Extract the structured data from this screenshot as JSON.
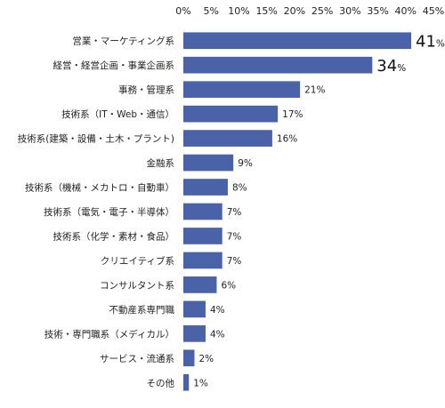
{
  "chart_data": {
    "type": "bar",
    "orientation": "horizontal",
    "title": "",
    "xlabel": "",
    "ylabel": "",
    "xlim": [
      0,
      45
    ],
    "ticks": [
      "0%",
      "5%",
      "10%",
      "15%",
      "20%",
      "25%",
      "30%",
      "35%",
      "40%",
      "45%"
    ],
    "tick_values": [
      0,
      5,
      10,
      15,
      20,
      25,
      30,
      35,
      40,
      45
    ],
    "grid": false,
    "legend": "none",
    "bar_color": "#4a62a8",
    "categories": [
      "営業・マーケティング系",
      "経営・経営企画・事業企画系",
      "事務・管理系",
      "技術系（IT・Web・通信）",
      "技術系(建築・設備・土木・プラント)",
      "金融系",
      "技術系（機械・メカトロ・自動車）",
      "技術系（電気・電子・半導体）",
      "技術系（化学・素材・食品）",
      "クリエイティブ系",
      "コンサルタント系",
      "不動産系専門職",
      "技術・専門職系（メディカル）",
      "サービス・流通系",
      "その他"
    ],
    "values": [
      41,
      34,
      21,
      17,
      16,
      9,
      8,
      7,
      7,
      7,
      6,
      4,
      4,
      2,
      1
    ],
    "value_labels": [
      "41",
      "34",
      "21%",
      "17%",
      "16%",
      "9%",
      "8%",
      "7%",
      "7%",
      "7%",
      "6%",
      "4%",
      "4%",
      "2%",
      "1%"
    ],
    "value_suffix": "%",
    "emphasized_count": 2
  }
}
